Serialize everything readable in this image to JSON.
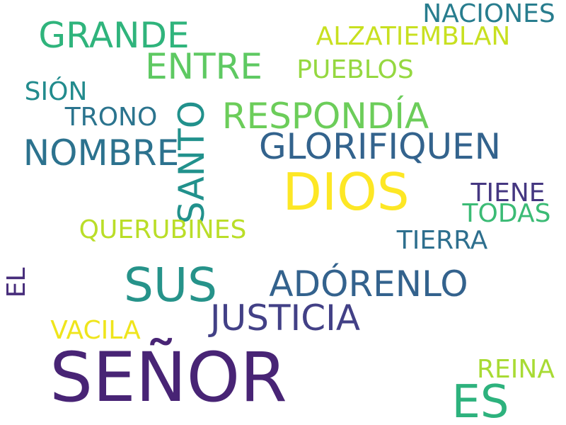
{
  "words": [
    {
      "text": "SEÑOR",
      "color": "#482475"
    },
    {
      "text": "DIOS",
      "color": "#fde725"
    },
    {
      "text": "SUS",
      "color": "#26938a"
    },
    {
      "text": "ES",
      "color": "#2db27d"
    },
    {
      "text": "GLORIFIQUEN",
      "color": "#33638d"
    },
    {
      "text": "ADÓRENLO",
      "color": "#33628d"
    },
    {
      "text": "JUSTICIA",
      "color": "#424086"
    },
    {
      "text": "NOMBRE",
      "color": "#2c728e"
    },
    {
      "text": "RESPONDÍA",
      "color": "#6ccd5a"
    },
    {
      "text": "SANTO",
      "color": "#21918c",
      "orientation": "vertical"
    },
    {
      "text": "GRANDE",
      "color": "#2fb47c"
    },
    {
      "text": "ENTRE",
      "color": "#5ec962"
    },
    {
      "text": "NACIONES",
      "color": "#287d8e"
    },
    {
      "text": "ALZATIEMBLAN",
      "color": "#c8e020"
    },
    {
      "text": "PUEBLOS",
      "color": "#95d840"
    },
    {
      "text": "SIÓN",
      "color": "#228b8d"
    },
    {
      "text": "TRONO",
      "color": "#2b748e"
    },
    {
      "text": "TIENE",
      "color": "#453781"
    },
    {
      "text": "TODAS",
      "color": "#3bbb75"
    },
    {
      "text": "QUERUBINES",
      "color": "#bade28"
    },
    {
      "text": "TIERRA",
      "color": "#2e6f8e"
    },
    {
      "text": "EL",
      "color": "#472d7b",
      "orientation": "vertical"
    },
    {
      "text": "VACILA",
      "color": "#efe51c"
    },
    {
      "text": "REINA",
      "color": "#a8db34"
    }
  ]
}
